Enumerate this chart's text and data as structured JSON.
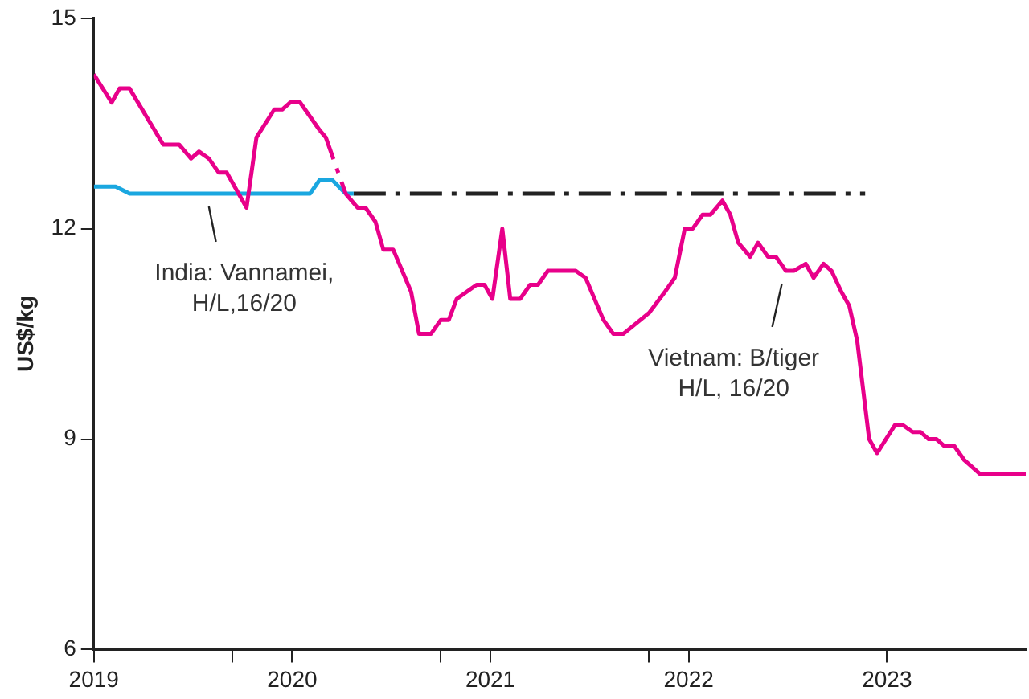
{
  "chart_data": {
    "type": "line",
    "ylabel": "US$/kg",
    "xlim": [
      2019,
      2023.7
    ],
    "xticks": [
      {
        "value": 2019,
        "label": "2019"
      },
      {
        "value": 2019.7,
        "label": null
      },
      {
        "value": 2020,
        "label": "2020"
      },
      {
        "value": 2020.75,
        "label": null
      },
      {
        "value": 2021,
        "label": "2021"
      },
      {
        "value": 2021.8,
        "label": null
      },
      {
        "value": 2022,
        "label": "2022"
      },
      {
        "value": 2023,
        "label": "2023"
      }
    ],
    "ylim": [
      6,
      15
    ],
    "yticks": [
      6,
      9,
      12,
      15
    ],
    "grid": false,
    "legend": false,
    "marker": "none",
    "series": [
      {
        "color": "#e8008a",
        "line_style": "solid",
        "x": [
          2019.0,
          2019.09,
          2019.13,
          2019.18,
          2019.35,
          2019.43,
          2019.49,
          2019.53,
          2019.58,
          2019.63,
          2019.67,
          2019.77,
          2019.82,
          2019.91,
          2019.95,
          2019.99,
          2020.04,
          2020.14
        ],
        "values": [
          14.2,
          13.8,
          14.0,
          14.0,
          13.2,
          13.2,
          13.0,
          13.1,
          13.0,
          12.8,
          12.8,
          12.3,
          13.3,
          13.7,
          13.7,
          13.8,
          13.8,
          13.4
        ]
      },
      {
        "color": "#e8008a",
        "line_style": "dashed",
        "x": [
          2020.14,
          2020.17,
          2020.27
        ],
        "values": [
          13.4,
          13.3,
          12.5
        ]
      },
      {
        "color": "#e8008a",
        "line_style": "solid",
        "x": [
          2020.27,
          2020.33,
          2020.37,
          2020.42,
          2020.46,
          2020.51,
          2020.6,
          2020.64,
          2020.7,
          2020.75,
          2020.79,
          2020.83,
          2020.93,
          2020.97,
          2021.01,
          2021.06,
          2021.1,
          2021.15,
          2021.2,
          2021.24,
          2021.29,
          2021.43,
          2021.48,
          2021.57,
          2021.62,
          2021.67,
          2021.8,
          2021.88,
          2021.93,
          2021.98,
          2022.02,
          2022.07,
          2022.11,
          2022.17,
          2022.21,
          2022.25,
          2022.31,
          2022.35,
          2022.4,
          2022.44,
          2022.49,
          2022.53,
          2022.59,
          2022.63,
          2022.68,
          2022.72,
          2022.77,
          2022.81,
          2022.85,
          2022.91,
          2022.95,
          2023.04,
          2023.08,
          2023.13,
          2023.17,
          2023.21,
          2023.25,
          2023.29,
          2023.34,
          2023.39,
          2023.47,
          2023.7
        ],
        "values": [
          12.5,
          12.3,
          12.3,
          12.1,
          11.7,
          11.7,
          11.1,
          10.5,
          10.5,
          10.7,
          10.7,
          11.0,
          11.2,
          11.2,
          11.0,
          12.0,
          11.0,
          11.0,
          11.2,
          11.2,
          11.4,
          11.4,
          11.3,
          10.7,
          10.5,
          10.5,
          10.8,
          11.1,
          11.3,
          12.0,
          12.0,
          12.2,
          12.2,
          12.4,
          12.2,
          11.8,
          11.6,
          11.8,
          11.6,
          11.6,
          11.4,
          11.4,
          11.5,
          11.3,
          11.5,
          11.4,
          11.1,
          10.9,
          10.4,
          9.0,
          8.8,
          9.2,
          9.2,
          9.1,
          9.1,
          9.0,
          9.0,
          8.9,
          8.9,
          8.7,
          8.5,
          8.5
        ]
      },
      {
        "color": "#1aa7e0",
        "line_style": "solid",
        "x": [
          2019.0,
          2019.11,
          2019.18,
          2020.09,
          2020.14,
          2020.2,
          2020.27,
          2020.31
        ],
        "values": [
          12.6,
          12.6,
          12.5,
          12.5,
          12.7,
          12.7,
          12.5,
          12.5
        ]
      },
      {
        "color": "#222222",
        "line_style": "dashed",
        "x": [
          2020.31,
          2022.89
        ],
        "values": [
          12.5,
          12.5
        ]
      }
    ],
    "annotations": [
      {
        "text": "India: Vannamei,\nH/L,16/20",
        "x": 2019.58,
        "y": 12.5
      },
      {
        "text": "Vietnam: B/tiger\nH/L, 16/20",
        "x": 2022.47,
        "y": 11.4
      }
    ]
  }
}
